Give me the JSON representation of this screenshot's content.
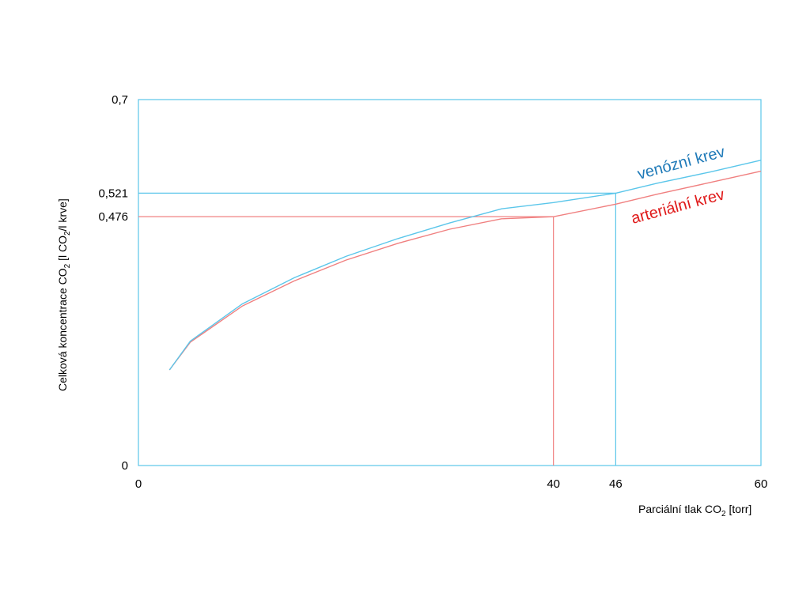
{
  "colors": {
    "venous": "#5bc6ea",
    "arterial": "#f08080",
    "venous_text": "#1f7ab8",
    "arterial_text": "#e01a1a",
    "frame": "#5bc6ea"
  },
  "chart_data": {
    "type": "line",
    "xlabel_main": "Parciální tlak CO",
    "xlabel_sub": "2",
    "xlabel_unit": " [torr]",
    "ylabel_main": "Celková koncentrace CO",
    "ylabel_sub1": "2",
    "ylabel_mid": " [l CO",
    "ylabel_sub2": "2",
    "ylabel_unit": "/l krve]",
    "xlim": [
      0,
      60
    ],
    "ylim": [
      0,
      0.7
    ],
    "x_ticks": [
      "0",
      "40",
      "46",
      "60"
    ],
    "y_ticks": [
      "0",
      "0,7"
    ],
    "reference_lines": [
      {
        "series": "arterial",
        "x": 40,
        "y": 0.476,
        "y_label": "0,476"
      },
      {
        "series": "venous",
        "x": 46,
        "y": 0.521,
        "y_label": "0,521"
      }
    ],
    "series": [
      {
        "name": "venózní krev",
        "key": "venous",
        "points": [
          [
            3,
            0.183
          ],
          [
            5,
            0.238
          ],
          [
            10,
            0.309
          ],
          [
            15,
            0.359
          ],
          [
            20,
            0.4
          ],
          [
            25,
            0.434
          ],
          [
            30,
            0.464
          ],
          [
            35,
            0.491
          ],
          [
            40,
            0.503
          ],
          [
            46,
            0.521
          ],
          [
            50,
            0.54
          ],
          [
            55,
            0.561
          ],
          [
            60,
            0.584
          ]
        ]
      },
      {
        "name": "arteriální krev",
        "key": "arterial",
        "points": [
          [
            3,
            0.183
          ],
          [
            5,
            0.236
          ],
          [
            10,
            0.305
          ],
          [
            15,
            0.353
          ],
          [
            20,
            0.393
          ],
          [
            25,
            0.425
          ],
          [
            30,
            0.452
          ],
          [
            35,
            0.472
          ],
          [
            40,
            0.476
          ],
          [
            46,
            0.5
          ],
          [
            50,
            0.519
          ],
          [
            55,
            0.541
          ],
          [
            60,
            0.563
          ]
        ]
      }
    ]
  }
}
